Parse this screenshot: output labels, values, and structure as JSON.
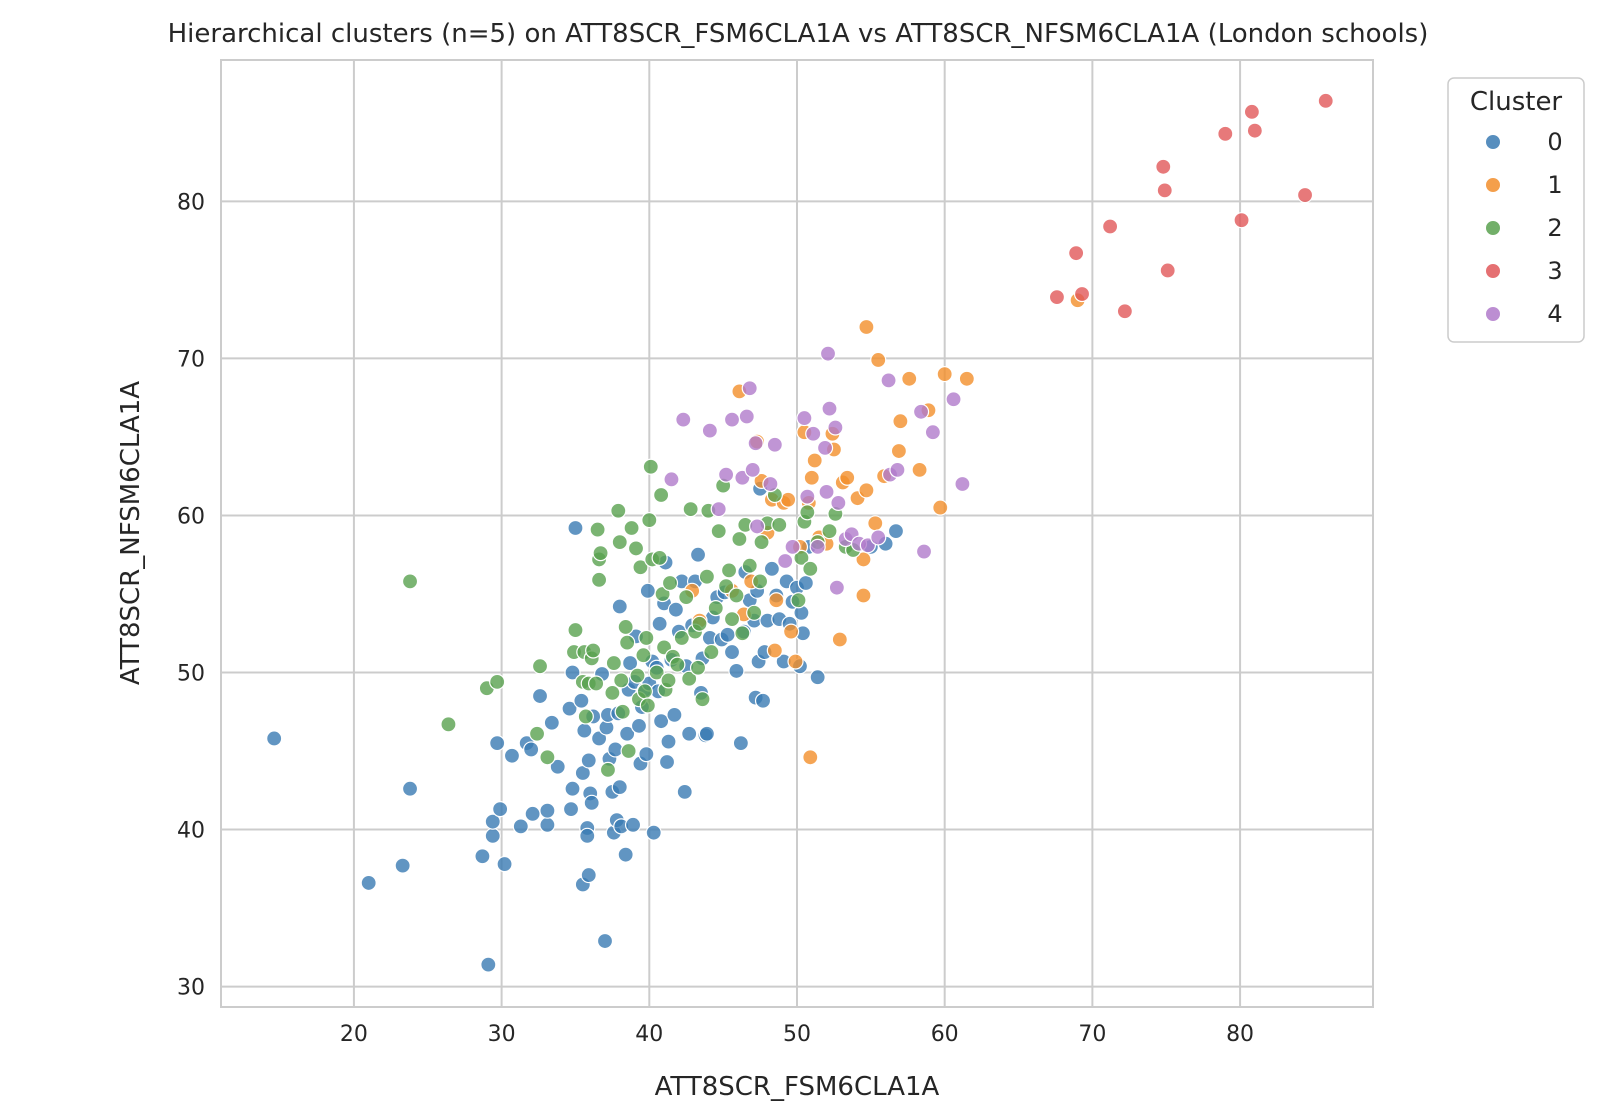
{
  "chart_data": {
    "type": "scatter",
    "title": "Hierarchical clusters (n=5) on ATT8SCR_FSM6CLA1A vs ATT8SCR_NFSM6CLA1A (London schools)",
    "xlabel": "ATT8SCR_FSM6CLA1A",
    "ylabel": "ATT8SCR_NFSM6CLA1A",
    "xlim": [
      11,
      89
    ],
    "ylim": [
      28.7,
      89
    ],
    "xticks": [
      20,
      30,
      40,
      50,
      60,
      70,
      80
    ],
    "yticks": [
      30,
      40,
      50,
      60,
      70,
      80
    ],
    "grid": true,
    "legend": {
      "title": "Cluster",
      "placement": "outside-top-right"
    },
    "series": [
      {
        "name": "0",
        "color": "#3a7ab3",
        "points": [
          [
            14.6,
            45.8
          ],
          [
            21,
            36.6
          ],
          [
            23.3,
            37.7
          ],
          [
            23.8,
            42.6
          ],
          [
            28.7,
            38.3
          ],
          [
            29.1,
            31.4
          ],
          [
            29.4,
            39.6
          ],
          [
            29.4,
            40.5
          ],
          [
            29.7,
            45.5
          ],
          [
            29.9,
            41.3
          ],
          [
            30.2,
            37.8
          ],
          [
            30.7,
            44.7
          ],
          [
            31.3,
            40.2
          ],
          [
            31.7,
            45.5
          ],
          [
            32,
            45.1
          ],
          [
            32.1,
            41
          ],
          [
            32.6,
            48.5
          ],
          [
            33.1,
            40.3
          ],
          [
            33.1,
            41.2
          ],
          [
            33.4,
            46.8
          ],
          [
            33.8,
            44
          ],
          [
            34.6,
            47.7
          ],
          [
            34.7,
            41.3
          ],
          [
            34.8,
            42.6
          ],
          [
            34.8,
            50
          ],
          [
            35,
            59.2
          ],
          [
            35.4,
            48.2
          ],
          [
            35.5,
            36.5
          ],
          [
            35.5,
            43.6
          ],
          [
            35.6,
            46.3
          ],
          [
            35.8,
            40.1
          ],
          [
            35.8,
            39.6
          ],
          [
            35.9,
            37.1
          ],
          [
            35.9,
            44.4
          ],
          [
            36,
            42.3
          ],
          [
            36.1,
            41.7
          ],
          [
            36.2,
            47.2
          ],
          [
            36.6,
            45.8
          ],
          [
            36.8,
            49.9
          ],
          [
            37,
            32.9
          ],
          [
            37.1,
            46.5
          ],
          [
            37.2,
            47.3
          ],
          [
            37.3,
            44.5
          ],
          [
            37.5,
            42.4
          ],
          [
            37.6,
            39.8
          ],
          [
            37.7,
            45.1
          ],
          [
            37.8,
            40.6
          ],
          [
            37.9,
            47.4
          ],
          [
            38,
            42.7
          ],
          [
            38,
            54.2
          ],
          [
            38.1,
            40.2
          ],
          [
            38.4,
            38.4
          ],
          [
            38.5,
            46.1
          ],
          [
            38.6,
            48.9
          ],
          [
            38.7,
            50.6
          ],
          [
            38.9,
            40.3
          ],
          [
            39,
            49.4
          ],
          [
            39.1,
            52.3
          ],
          [
            39.3,
            46.6
          ],
          [
            39.4,
            44.2
          ],
          [
            39.5,
            47.8
          ],
          [
            39.7,
            48.9
          ],
          [
            39.8,
            44.8
          ],
          [
            39.9,
            55.2
          ],
          [
            40,
            49.3
          ],
          [
            40.2,
            50.7
          ],
          [
            40.3,
            39.8
          ],
          [
            40.5,
            50.3
          ],
          [
            40.6,
            48.8
          ],
          [
            40.7,
            53.1
          ],
          [
            40.8,
            46.9
          ],
          [
            41,
            54.4
          ],
          [
            41.1,
            57
          ],
          [
            41.2,
            44.3
          ],
          [
            41.3,
            45.6
          ],
          [
            41.5,
            50.8
          ],
          [
            41.7,
            47.3
          ],
          [
            41.8,
            54
          ],
          [
            42,
            52.6
          ],
          [
            42.2,
            55.8
          ],
          [
            42.4,
            42.4
          ],
          [
            42.5,
            50.4
          ],
          [
            42.7,
            46.1
          ],
          [
            42.9,
            53
          ],
          [
            43.1,
            55.8
          ],
          [
            43.3,
            57.5
          ],
          [
            43.5,
            48.7
          ],
          [
            43.6,
            50.9
          ],
          [
            43.8,
            46
          ],
          [
            43.9,
            46.1
          ],
          [
            44.1,
            52.2
          ],
          [
            44.3,
            53.5
          ],
          [
            44.6,
            54.8
          ],
          [
            44.9,
            52.1
          ],
          [
            45.1,
            55.1
          ],
          [
            45.3,
            52.4
          ],
          [
            45.6,
            51.3
          ],
          [
            45.9,
            50.1
          ],
          [
            46.2,
            45.5
          ],
          [
            46.4,
            52.6
          ],
          [
            46.5,
            56.4
          ],
          [
            46.8,
            54.6
          ],
          [
            47.1,
            53.3
          ],
          [
            47.2,
            48.4
          ],
          [
            47.3,
            55.2
          ],
          [
            47.4,
            50.7
          ],
          [
            47.5,
            61.7
          ],
          [
            47.7,
            48.2
          ],
          [
            47.8,
            51.3
          ],
          [
            48,
            53.3
          ],
          [
            48.3,
            56.6
          ],
          [
            48.6,
            54.9
          ],
          [
            48.8,
            53.4
          ],
          [
            49.1,
            50.7
          ],
          [
            49.3,
            55.8
          ],
          [
            49.5,
            53.1
          ],
          [
            49.7,
            54.5
          ],
          [
            50,
            55.4
          ],
          [
            50.2,
            50.4
          ],
          [
            50.3,
            53.8
          ],
          [
            50.4,
            52.5
          ],
          [
            50.6,
            55.7
          ],
          [
            50.8,
            58
          ],
          [
            51.4,
            49.7
          ],
          [
            55,
            58
          ],
          [
            56,
            58.2
          ],
          [
            56.7,
            59
          ]
        ]
      },
      {
        "name": "1",
        "color": "#f28e2b",
        "points": [
          [
            42.9,
            55.2
          ],
          [
            43.4,
            53.3
          ],
          [
            45.6,
            55.2
          ],
          [
            46.1,
            67.9
          ],
          [
            46.4,
            53.7
          ],
          [
            46.9,
            55.8
          ],
          [
            47.3,
            64.7
          ],
          [
            47.6,
            62.2
          ],
          [
            48,
            58.9
          ],
          [
            48.3,
            61
          ],
          [
            48.5,
            51.4
          ],
          [
            48.6,
            54.6
          ],
          [
            49.1,
            60.8
          ],
          [
            49.4,
            61
          ],
          [
            49.6,
            52.6
          ],
          [
            49.9,
            50.7
          ],
          [
            50.2,
            58
          ],
          [
            50.5,
            65.3
          ],
          [
            50.8,
            60.8
          ],
          [
            50.9,
            44.6
          ],
          [
            51,
            62.4
          ],
          [
            51.2,
            63.5
          ],
          [
            51.5,
            58.6
          ],
          [
            52,
            58.2
          ],
          [
            52.4,
            65.2
          ],
          [
            52.5,
            64.2
          ],
          [
            52.9,
            52.1
          ],
          [
            53.1,
            62.1
          ],
          [
            53.4,
            62.4
          ],
          [
            54.1,
            61.1
          ],
          [
            54.5,
            57.2
          ],
          [
            54.5,
            54.9
          ],
          [
            54.7,
            61.6
          ],
          [
            54.7,
            72
          ],
          [
            55.3,
            59.5
          ],
          [
            55.5,
            69.9
          ],
          [
            55.9,
            62.5
          ],
          [
            56.9,
            64.1
          ],
          [
            57,
            66
          ],
          [
            57.6,
            68.7
          ],
          [
            58.3,
            62.9
          ],
          [
            58.9,
            66.7
          ],
          [
            59.7,
            60.5
          ],
          [
            60,
            69
          ],
          [
            61.5,
            68.7
          ],
          [
            69,
            73.7
          ]
        ]
      },
      {
        "name": "2",
        "color": "#59a14f",
        "points": [
          [
            23.8,
            55.8
          ],
          [
            26.4,
            46.7
          ],
          [
            29,
            49
          ],
          [
            29.7,
            49.4
          ],
          [
            32.4,
            46.1
          ],
          [
            32.6,
            50.4
          ],
          [
            33.1,
            44.6
          ],
          [
            34.9,
            51.3
          ],
          [
            35,
            52.7
          ],
          [
            35.5,
            49.4
          ],
          [
            35.6,
            51.3
          ],
          [
            35.7,
            47.2
          ],
          [
            35.9,
            49.3
          ],
          [
            36.1,
            50.9
          ],
          [
            36.2,
            51.4
          ],
          [
            36.4,
            49.3
          ],
          [
            36.5,
            59.1
          ],
          [
            36.6,
            57.2
          ],
          [
            36.6,
            55.9
          ],
          [
            36.7,
            57.6
          ],
          [
            37.2,
            43.8
          ],
          [
            37.5,
            48.7
          ],
          [
            37.6,
            50.6
          ],
          [
            37.9,
            60.3
          ],
          [
            38,
            58.3
          ],
          [
            38.1,
            49.5
          ],
          [
            38.2,
            47.5
          ],
          [
            38.4,
            52.9
          ],
          [
            38.5,
            51.9
          ],
          [
            38.6,
            45
          ],
          [
            38.8,
            59.2
          ],
          [
            39.1,
            57.9
          ],
          [
            39.2,
            49.8
          ],
          [
            39.3,
            48.3
          ],
          [
            39.4,
            56.7
          ],
          [
            39.6,
            51.1
          ],
          [
            39.7,
            48.8
          ],
          [
            39.8,
            52.2
          ],
          [
            39.9,
            47.9
          ],
          [
            40,
            59.7
          ],
          [
            40.1,
            63.1
          ],
          [
            40.2,
            57.2
          ],
          [
            40.5,
            50
          ],
          [
            40.7,
            57.3
          ],
          [
            40.8,
            61.3
          ],
          [
            40.9,
            55
          ],
          [
            41,
            51.6
          ],
          [
            41.1,
            48.9
          ],
          [
            41.3,
            49.5
          ],
          [
            41.4,
            55.7
          ],
          [
            41.6,
            51
          ],
          [
            41.9,
            50.5
          ],
          [
            42.2,
            52.2
          ],
          [
            42.5,
            54.8
          ],
          [
            42.7,
            49.6
          ],
          [
            42.8,
            60.4
          ],
          [
            43.1,
            52.6
          ],
          [
            43.3,
            50.3
          ],
          [
            43.4,
            53.1
          ],
          [
            43.6,
            48.3
          ],
          [
            43.9,
            56.1
          ],
          [
            44,
            60.3
          ],
          [
            44.2,
            51.3
          ],
          [
            44.5,
            54.1
          ],
          [
            44.7,
            59
          ],
          [
            45,
            61.9
          ],
          [
            45.2,
            55.5
          ],
          [
            45.4,
            56.5
          ],
          [
            45.6,
            53.4
          ],
          [
            45.9,
            54.9
          ],
          [
            46.1,
            58.5
          ],
          [
            46.3,
            52.5
          ],
          [
            46.5,
            59.4
          ],
          [
            46.8,
            56.8
          ],
          [
            47.1,
            53.8
          ],
          [
            47.5,
            55.8
          ],
          [
            47.6,
            58.3
          ],
          [
            48,
            59.5
          ],
          [
            48.5,
            61.3
          ],
          [
            48.8,
            59.4
          ],
          [
            50.1,
            54.6
          ],
          [
            50.3,
            57.3
          ],
          [
            50.5,
            59.6
          ],
          [
            50.7,
            60.2
          ],
          [
            50.9,
            56.6
          ],
          [
            51.4,
            58.3
          ],
          [
            52.2,
            59
          ],
          [
            52.6,
            60.1
          ],
          [
            53.3,
            58
          ],
          [
            53.8,
            57.8
          ]
        ]
      },
      {
        "name": "3",
        "color": "#e15759",
        "points": [
          [
            67.6,
            73.9
          ],
          [
            68.9,
            76.7
          ],
          [
            69.3,
            74.1
          ],
          [
            71.2,
            78.4
          ],
          [
            72.2,
            73
          ],
          [
            74.8,
            82.2
          ],
          [
            74.9,
            80.7
          ],
          [
            75.1,
            75.6
          ],
          [
            79,
            84.3
          ],
          [
            80.1,
            78.8
          ],
          [
            80.8,
            85.7
          ],
          [
            81,
            84.5
          ],
          [
            84.4,
            80.4
          ],
          [
            85.8,
            86.4
          ]
        ]
      },
      {
        "name": "4",
        "color": "#b07aca",
        "points": [
          [
            41.5,
            62.3
          ],
          [
            42.3,
            66.1
          ],
          [
            44.1,
            65.4
          ],
          [
            44.7,
            60.4
          ],
          [
            45.2,
            62.6
          ],
          [
            45.6,
            66.1
          ],
          [
            46.3,
            62.4
          ],
          [
            46.6,
            66.3
          ],
          [
            46.8,
            68.1
          ],
          [
            47,
            62.9
          ],
          [
            47.2,
            64.6
          ],
          [
            47.3,
            59.3
          ],
          [
            48.2,
            62
          ],
          [
            48.5,
            64.5
          ],
          [
            49.2,
            57.1
          ],
          [
            49.7,
            58
          ],
          [
            50.5,
            66.2
          ],
          [
            50.7,
            61.2
          ],
          [
            51.1,
            65.2
          ],
          [
            51.4,
            58
          ],
          [
            51.9,
            64.3
          ],
          [
            52,
            61.5
          ],
          [
            52.1,
            70.3
          ],
          [
            52.2,
            66.8
          ],
          [
            52.6,
            65.6
          ],
          [
            52.7,
            55.4
          ],
          [
            52.8,
            60.8
          ],
          [
            53.3,
            58.5
          ],
          [
            53.7,
            58.8
          ],
          [
            54.2,
            58.2
          ],
          [
            54.8,
            58.1
          ],
          [
            55.5,
            58.6
          ],
          [
            56.2,
            68.6
          ],
          [
            56.3,
            62.6
          ],
          [
            56.8,
            62.9
          ],
          [
            58.4,
            66.6
          ],
          [
            58.6,
            57.7
          ],
          [
            59.2,
            65.3
          ],
          [
            60.6,
            67.4
          ],
          [
            61.2,
            62
          ]
        ]
      }
    ]
  }
}
